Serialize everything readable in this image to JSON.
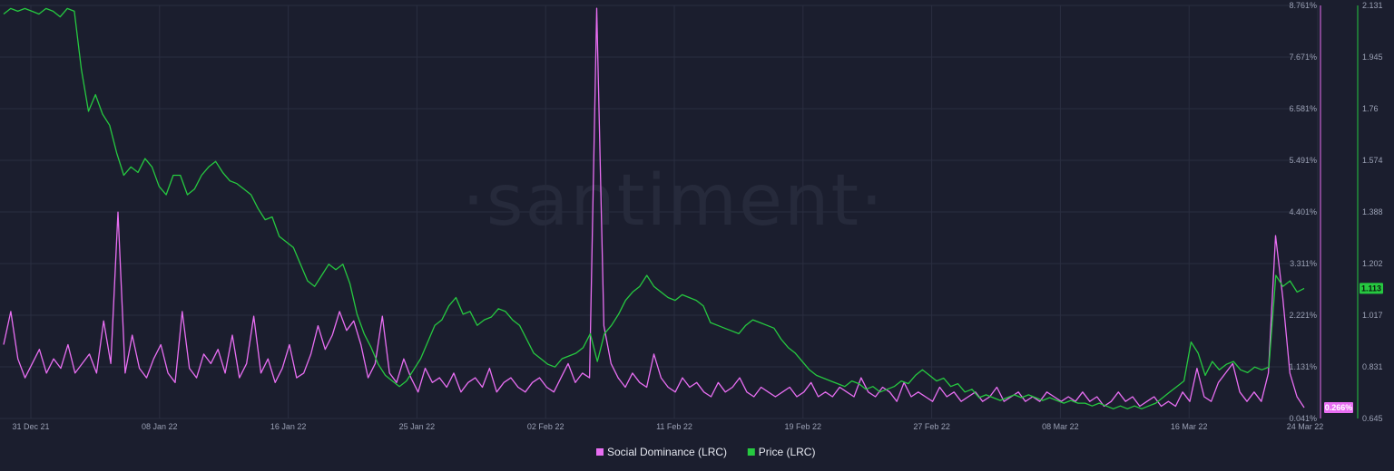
{
  "watermark": "·santiment·",
  "chart_data": {
    "type": "line",
    "x_labels": [
      "31 Dec 21",
      "08 Jan 22",
      "16 Jan 22",
      "25 Jan 22",
      "02 Feb 22",
      "11 Feb 22",
      "19 Feb 22",
      "27 Feb 22",
      "08 Mar 22",
      "16 Mar 22",
      "24 Mar 22"
    ],
    "y_left_ticks": [
      "8.761%",
      "7.671%",
      "6.581%",
      "5.491%",
      "4.401%",
      "3.311%",
      "2.221%",
      "1.131%",
      "0.041%"
    ],
    "y_right_ticks": [
      "2.131",
      "1.945",
      "1.76",
      "1.574",
      "1.388",
      "1.202",
      "1.017",
      "0.831",
      "0.645"
    ],
    "ylim_social": [
      0.041,
      8.761
    ],
    "ylim_price": [
      0.645,
      2.131
    ],
    "series": [
      {
        "name": "Social Dominance (LRC)",
        "axis": "left",
        "color": "#e86ef2",
        "last_value": "0.266%",
        "values": [
          1.6,
          2.3,
          1.3,
          0.9,
          1.2,
          1.5,
          1.0,
          1.3,
          1.1,
          1.6,
          1.0,
          1.2,
          1.4,
          1.0,
          2.1,
          1.2,
          4.4,
          1.0,
          1.8,
          1.1,
          0.9,
          1.3,
          1.6,
          1.0,
          0.8,
          2.3,
          1.1,
          0.9,
          1.4,
          1.2,
          1.5,
          1.0,
          1.8,
          0.9,
          1.2,
          2.2,
          1.0,
          1.3,
          0.8,
          1.1,
          1.6,
          0.9,
          1.0,
          1.4,
          2.0,
          1.5,
          1.8,
          2.3,
          1.9,
          2.1,
          1.6,
          0.9,
          1.2,
          2.2,
          1.0,
          0.8,
          1.3,
          0.9,
          0.6,
          1.1,
          0.8,
          0.9,
          0.7,
          1.0,
          0.6,
          0.8,
          0.9,
          0.7,
          1.1,
          0.6,
          0.8,
          0.9,
          0.7,
          0.6,
          0.8,
          0.9,
          0.7,
          0.6,
          0.9,
          1.2,
          0.8,
          1.0,
          0.9,
          8.7,
          2.0,
          1.2,
          0.9,
          0.7,
          1.0,
          0.8,
          0.7,
          1.4,
          0.9,
          0.7,
          0.6,
          0.9,
          0.7,
          0.8,
          0.6,
          0.5,
          0.8,
          0.6,
          0.7,
          0.9,
          0.6,
          0.5,
          0.7,
          0.6,
          0.5,
          0.6,
          0.7,
          0.5,
          0.6,
          0.8,
          0.5,
          0.6,
          0.5,
          0.7,
          0.6,
          0.5,
          0.9,
          0.6,
          0.5,
          0.7,
          0.6,
          0.4,
          0.8,
          0.5,
          0.6,
          0.5,
          0.4,
          0.7,
          0.5,
          0.6,
          0.4,
          0.5,
          0.6,
          0.4,
          0.5,
          0.7,
          0.4,
          0.5,
          0.6,
          0.4,
          0.5,
          0.4,
          0.6,
          0.5,
          0.4,
          0.5,
          0.4,
          0.6,
          0.4,
          0.5,
          0.3,
          0.4,
          0.6,
          0.4,
          0.5,
          0.3,
          0.4,
          0.5,
          0.3,
          0.4,
          0.3,
          0.6,
          0.4,
          1.1,
          0.5,
          0.4,
          0.8,
          1.0,
          1.2,
          0.6,
          0.4,
          0.6,
          0.4,
          1.0,
          3.9,
          2.6,
          1.0,
          0.5,
          0.27
        ],
        "spikes_note": ""
      },
      {
        "name": "Price (LRC)",
        "axis": "right",
        "color": "#26c940",
        "last_value": "1.113",
        "values": [
          2.1,
          2.12,
          2.11,
          2.12,
          2.11,
          2.1,
          2.12,
          2.11,
          2.09,
          2.12,
          2.11,
          1.9,
          1.75,
          1.81,
          1.74,
          1.7,
          1.6,
          1.52,
          1.55,
          1.53,
          1.58,
          1.55,
          1.48,
          1.45,
          1.52,
          1.52,
          1.45,
          1.47,
          1.52,
          1.55,
          1.57,
          1.53,
          1.5,
          1.49,
          1.47,
          1.45,
          1.4,
          1.36,
          1.37,
          1.3,
          1.28,
          1.26,
          1.2,
          1.14,
          1.12,
          1.16,
          1.2,
          1.18,
          1.2,
          1.13,
          1.02,
          0.95,
          0.9,
          0.84,
          0.8,
          0.78,
          0.76,
          0.78,
          0.82,
          0.86,
          0.92,
          0.98,
          1.0,
          1.05,
          1.08,
          1.02,
          1.03,
          0.98,
          1.0,
          1.01,
          1.04,
          1.03,
          1.0,
          0.98,
          0.93,
          0.88,
          0.86,
          0.84,
          0.83,
          0.86,
          0.87,
          0.88,
          0.9,
          0.95,
          0.85,
          0.95,
          0.98,
          1.02,
          1.07,
          1.1,
          1.12,
          1.16,
          1.12,
          1.1,
          1.08,
          1.07,
          1.09,
          1.08,
          1.07,
          1.05,
          0.99,
          0.98,
          0.97,
          0.96,
          0.95,
          0.98,
          1.0,
          0.99,
          0.98,
          0.97,
          0.93,
          0.9,
          0.88,
          0.85,
          0.82,
          0.8,
          0.79,
          0.78,
          0.77,
          0.76,
          0.78,
          0.77,
          0.75,
          0.76,
          0.74,
          0.75,
          0.76,
          0.78,
          0.77,
          0.8,
          0.82,
          0.8,
          0.78,
          0.79,
          0.76,
          0.77,
          0.74,
          0.75,
          0.72,
          0.73,
          0.72,
          0.71,
          0.72,
          0.73,
          0.72,
          0.73,
          0.72,
          0.71,
          0.72,
          0.71,
          0.7,
          0.71,
          0.7,
          0.7,
          0.69,
          0.7,
          0.69,
          0.68,
          0.69,
          0.68,
          0.69,
          0.68,
          0.69,
          0.7,
          0.72,
          0.74,
          0.76,
          0.78,
          0.92,
          0.88,
          0.8,
          0.85,
          0.82,
          0.84,
          0.85,
          0.82,
          0.81,
          0.83,
          0.82,
          0.83,
          1.16,
          1.12,
          1.14,
          1.1,
          1.113
        ]
      }
    ],
    "legend": [
      "Social Dominance (LRC)",
      "Price (LRC)"
    ],
    "legend_position": "bottom-center",
    "grid": true
  }
}
